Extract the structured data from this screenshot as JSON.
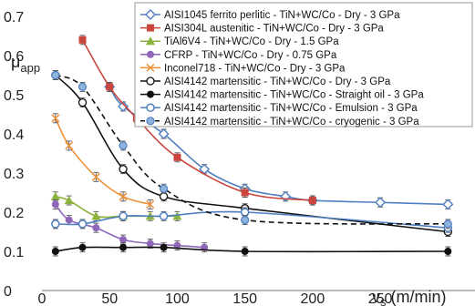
{
  "chart_data": {
    "type": "line",
    "title": "",
    "xlabel": "v",
    "xlabel_sub": "s",
    "xlabel_unit": " (m/min)",
    "ylabel": "μ",
    "ylabel_sub": "app",
    "xlim": [
      0,
      320
    ],
    "ylim": [
      0,
      0.7
    ],
    "x_ticks": [
      0,
      50,
      100,
      150,
      200,
      250
    ],
    "y_ticks": [
      0,
      0.1,
      0.2,
      0.3,
      0.4,
      0.5,
      0.6,
      0.7
    ],
    "grid": false,
    "legend_position": "top-right",
    "series": [
      {
        "name": "AISI1045 ferrito perlitic - TiN+WC/Co - Dry - 3 GPa",
        "color": "#4f7fc0",
        "marker": "diamond",
        "dashed": false,
        "x": [
          50,
          60,
          90,
          120,
          150,
          180,
          200,
          250,
          300
        ],
        "y": [
          0.52,
          0.47,
          0.4,
          0.31,
          0.26,
          0.24,
          0.23,
          0.225,
          0.22
        ]
      },
      {
        "name": "AISI304L austenitic - TiN+WC/Co - Dry - 3 GPa",
        "color": "#c9453d",
        "marker": "square",
        "dashed": false,
        "x": [
          30,
          50,
          70,
          100,
          150,
          200
        ],
        "y": [
          0.64,
          0.52,
          0.44,
          0.34,
          0.25,
          0.23
        ]
      },
      {
        "name": "TiAl6V4 - TiN+WC/Co - Dry - 1.5 GPa",
        "color": "#8db33f",
        "marker": "triangle",
        "dashed": false,
        "x": [
          10,
          20,
          40,
          60,
          80,
          100
        ],
        "y": [
          0.24,
          0.23,
          0.19,
          0.19,
          0.19,
          0.19
        ]
      },
      {
        "name": "CFRP - TiN+WC/Co - Dry - 0.75 GPa",
        "color": "#8e67b8",
        "marker": "circle",
        "dashed": false,
        "x": [
          10,
          20,
          40,
          60,
          80,
          100,
          120
        ],
        "y": [
          0.22,
          0.18,
          0.16,
          0.13,
          0.12,
          0.115,
          0.11
        ]
      },
      {
        "name": "Inconel718 - TiN+WC/Co - Dry - 3 GPa",
        "color": "#f0913c",
        "marker": "x",
        "dashed": false,
        "x": [
          10,
          20,
          40,
          60,
          80
        ],
        "y": [
          0.44,
          0.37,
          0.29,
          0.24,
          0.22
        ]
      },
      {
        "name": "AISI4142 martensitic - TiN+WC/Co - Dry - 3 GPa",
        "color": "#111111",
        "marker": "open-circle",
        "dashed": false,
        "x": [
          10,
          30,
          60,
          90,
          150,
          300
        ],
        "y": [
          0.55,
          0.48,
          0.31,
          0.24,
          0.21,
          0.15
        ]
      },
      {
        "name": "AISI4142 martensitic - TiN+WC/Co - Straight oil - 3 GPa",
        "color": "#111111",
        "marker": "filled-circle",
        "dashed": false,
        "x": [
          10,
          30,
          60,
          90,
          150,
          300
        ],
        "y": [
          0.1,
          0.11,
          0.11,
          0.11,
          0.1,
          0.1
        ]
      },
      {
        "name": "AISI4142 martensitic - TiN+WC/Co - Emulsion - 3 GPa",
        "color": "#4f7fc0",
        "marker": "circle-blue",
        "dashed": false,
        "x": [
          10,
          30,
          60,
          90,
          150,
          300
        ],
        "y": [
          0.17,
          0.17,
          0.19,
          0.19,
          0.2,
          0.16
        ]
      },
      {
        "name": "AISI4142 martensitic - TiN+WC/Co - cryogenic - 3 GPa",
        "color": "#111111",
        "marker": "circle-lightblue",
        "dashed": true,
        "x": [
          10,
          30,
          60,
          90,
          150,
          300
        ],
        "y": [
          0.55,
          0.52,
          0.37,
          0.26,
          0.18,
          0.17
        ]
      }
    ]
  }
}
